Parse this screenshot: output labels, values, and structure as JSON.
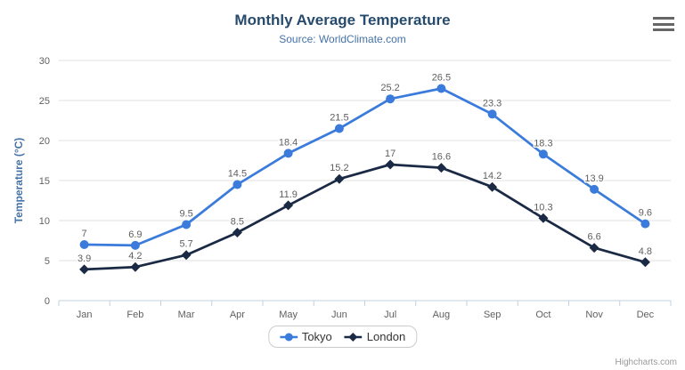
{
  "chart_data": {
    "type": "line",
    "title": "Monthly Average Temperature",
    "subtitle": "Source: WorldClimate.com",
    "xlabel": "",
    "ylabel": "Temperature (°C)",
    "ylim": [
      0,
      30
    ],
    "ytick_interval": 5,
    "grid": true,
    "legend_position": "bottom-center",
    "categories": [
      "Jan",
      "Feb",
      "Mar",
      "Apr",
      "May",
      "Jun",
      "Jul",
      "Aug",
      "Sep",
      "Oct",
      "Nov",
      "Dec"
    ],
    "series": [
      {
        "name": "Tokyo",
        "marker": "circle",
        "color": "#3a7bdb",
        "values": [
          7,
          6.9,
          9.5,
          14.5,
          18.4,
          21.5,
          25.2,
          26.5,
          23.3,
          18.3,
          13.9,
          9.6
        ]
      },
      {
        "name": "London",
        "marker": "diamond",
        "color": "#1b2a44",
        "values": [
          3.9,
          4.2,
          5.7,
          8.5,
          11.9,
          15.2,
          17,
          16.6,
          14.2,
          10.3,
          6.6,
          4.8
        ]
      }
    ]
  },
  "credits": {
    "label": "Highcharts.com"
  },
  "menu": {
    "icon": "hamburger-menu-icon"
  },
  "colors": {
    "title": "#274b6d",
    "subtitle": "#4572a7",
    "axis_title": "#4572a7",
    "tick_label": "#606060",
    "data_label": "#606060",
    "grid": "#e0e0e0",
    "axis_line": "#c0d0e0",
    "legend_text": "#333333",
    "credits_text": "#999999"
  }
}
